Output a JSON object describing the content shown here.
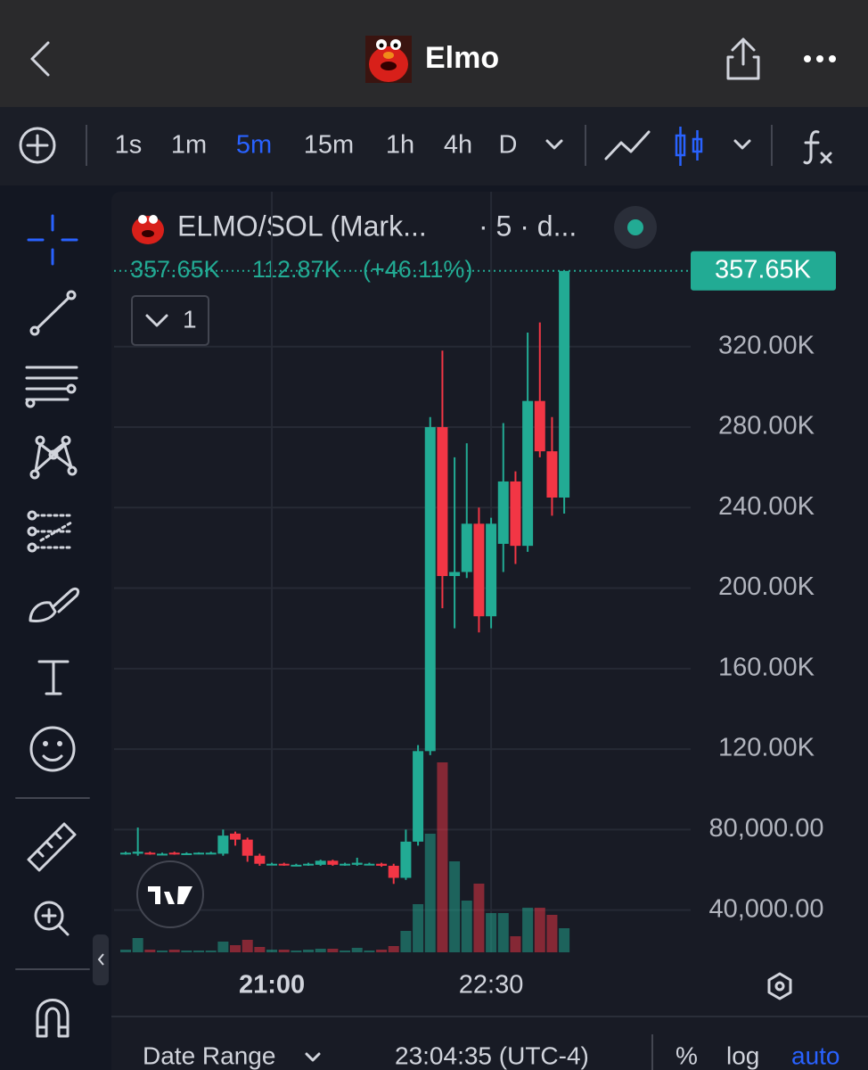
{
  "header": {
    "title": "Elmo"
  },
  "toolbar": {
    "intervals": [
      "1s",
      "1m",
      "5m",
      "15m",
      "1h",
      "4h",
      "D"
    ]
  },
  "chart_data": {
    "type": "candlestick",
    "symbol": "ELMO/SOL (Mark...",
    "details": "· 5 · d...",
    "legend_values": [
      "357.65K",
      "112.87K",
      "(+46.11%)"
    ],
    "indicator_count": 1,
    "categories": [
      null,
      null,
      null,
      null,
      null,
      null,
      null,
      null,
      null,
      null,
      null,
      null,
      "21:00",
      null,
      null,
      null,
      null,
      null,
      null,
      null,
      null,
      null,
      null,
      null,
      null,
      null,
      null,
      null,
      null,
      null,
      "22:30",
      null,
      null,
      null,
      null,
      null,
      null
    ],
    "open": [
      68000,
      68000,
      68500,
      68000,
      68500,
      68200,
      68200,
      68500,
      68000,
      78000,
      75000,
      67000,
      63000,
      63000,
      62500,
      62500,
      62500,
      64500,
      62500,
      62500,
      63000,
      63000,
      62000,
      56000,
      74000,
      119000,
      280000,
      206000,
      208000,
      232000,
      186000,
      222000,
      253000,
      221000,
      293000,
      268000,
      245000
    ],
    "high": [
      69000,
      81000,
      69000,
      68500,
      69000,
      68700,
      68700,
      69000,
      80000,
      79000,
      76000,
      68000,
      63500,
      63500,
      63000,
      63500,
      65000,
      65000,
      63500,
      66000,
      63500,
      63500,
      63000,
      80000,
      122000,
      285000,
      318000,
      265000,
      272000,
      240000,
      235000,
      282000,
      258000,
      327000,
      332000,
      285000,
      357650
    ],
    "low": [
      67500,
      67000,
      67500,
      67500,
      67500,
      67700,
      67700,
      68000,
      67000,
      72000,
      64000,
      62000,
      62500,
      62000,
      62000,
      62000,
      62000,
      62000,
      62000,
      62000,
      62500,
      61500,
      53000,
      55000,
      72000,
      117000,
      190000,
      180000,
      205000,
      178000,
      180000,
      208000,
      212000,
      218000,
      265000,
      236000,
      237000
    ],
    "close": [
      68500,
      69000,
      68000,
      68000,
      68000,
      68200,
      68500,
      68500,
      77000,
      75000,
      67000,
      63000,
      63000,
      62500,
      62500,
      63000,
      64500,
      62500,
      63000,
      63500,
      63000,
      62000,
      56000,
      74000,
      119000,
      280000,
      206000,
      208000,
      232000,
      186000,
      232000,
      253000,
      221000,
      293000,
      268000,
      245000,
      357650
    ],
    "volume": [
      3,
      16,
      3,
      2,
      3,
      2,
      2,
      2,
      12,
      8,
      14,
      6,
      3,
      3,
      2,
      3,
      4,
      4,
      2,
      5,
      2,
      3,
      7,
      24,
      54,
      133,
      213,
      102,
      58,
      77,
      44,
      44,
      18,
      50,
      50,
      42,
      27
    ],
    "up_color": "#22ab94",
    "down_color": "#f23645",
    "ylim": [
      19000,
      397000
    ],
    "yticks": [
      {
        "value": 40000,
        "label": "40,000.00"
      },
      {
        "value": 80000,
        "label": "80,000.00"
      },
      {
        "value": 120000,
        "label": "120.00K"
      },
      {
        "value": 160000,
        "label": "160.00K"
      },
      {
        "value": 200000,
        "label": "200.00K"
      },
      {
        "value": 240000,
        "label": "240.00K"
      },
      {
        "value": 280000,
        "label": "280.00K"
      },
      {
        "value": 320000,
        "label": "320.00K"
      }
    ],
    "grid": true,
    "last_price": {
      "value": 357650,
      "label": "357.65K"
    }
  },
  "footer": {
    "date_range": "Date Range",
    "time": "23:04:35 (UTC-4)",
    "buttons": [
      "%",
      "log",
      "auto"
    ]
  }
}
